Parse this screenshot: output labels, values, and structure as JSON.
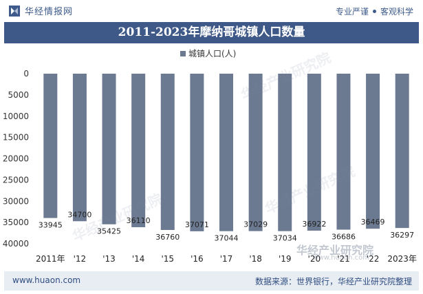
{
  "header": {
    "brand_name": "华经情报网",
    "tagline_left": "专业严谨",
    "tagline_right": "客观科学"
  },
  "title": "2011-2023年摩纳哥城镇人口数量",
  "footer": {
    "url": "www.huaon.com",
    "source": "数据来源：世界银行，华经产业研究院整理"
  },
  "watermark": {
    "text": "华经产业研究院",
    "logo_text": "华经产业研究院",
    "logo_url": "www.huaon.com"
  },
  "colors": {
    "bar": "#6c7a91",
    "title_bg": "#3e5887",
    "brand": "#3d5a8a"
  },
  "chart_data": {
    "type": "bar",
    "legend": "城镇人口(人)",
    "legend_position": "top-center",
    "y_inverted": true,
    "ylim": [
      0,
      40000
    ],
    "yticks": [
      "0",
      "5000",
      "10000",
      "15000",
      "20000",
      "25000",
      "30000",
      "35000",
      "40000"
    ],
    "categories": [
      "2011年",
      "'12",
      "'13",
      "'14",
      "'15",
      "'16",
      "'17",
      "'18",
      "'19",
      "'20",
      "'21",
      "'22",
      "2023年"
    ],
    "values": [
      33945,
      34700,
      35425,
      36110,
      36760,
      37071,
      37044,
      37029,
      37034,
      36922,
      36686,
      36469,
      36297
    ],
    "value_labels": [
      "33945",
      "34700",
      "35425",
      "36110",
      "36760",
      "37071",
      "37044",
      "37029",
      "37034",
      "36922",
      "36686",
      "36469",
      "36297"
    ],
    "grid": false
  }
}
